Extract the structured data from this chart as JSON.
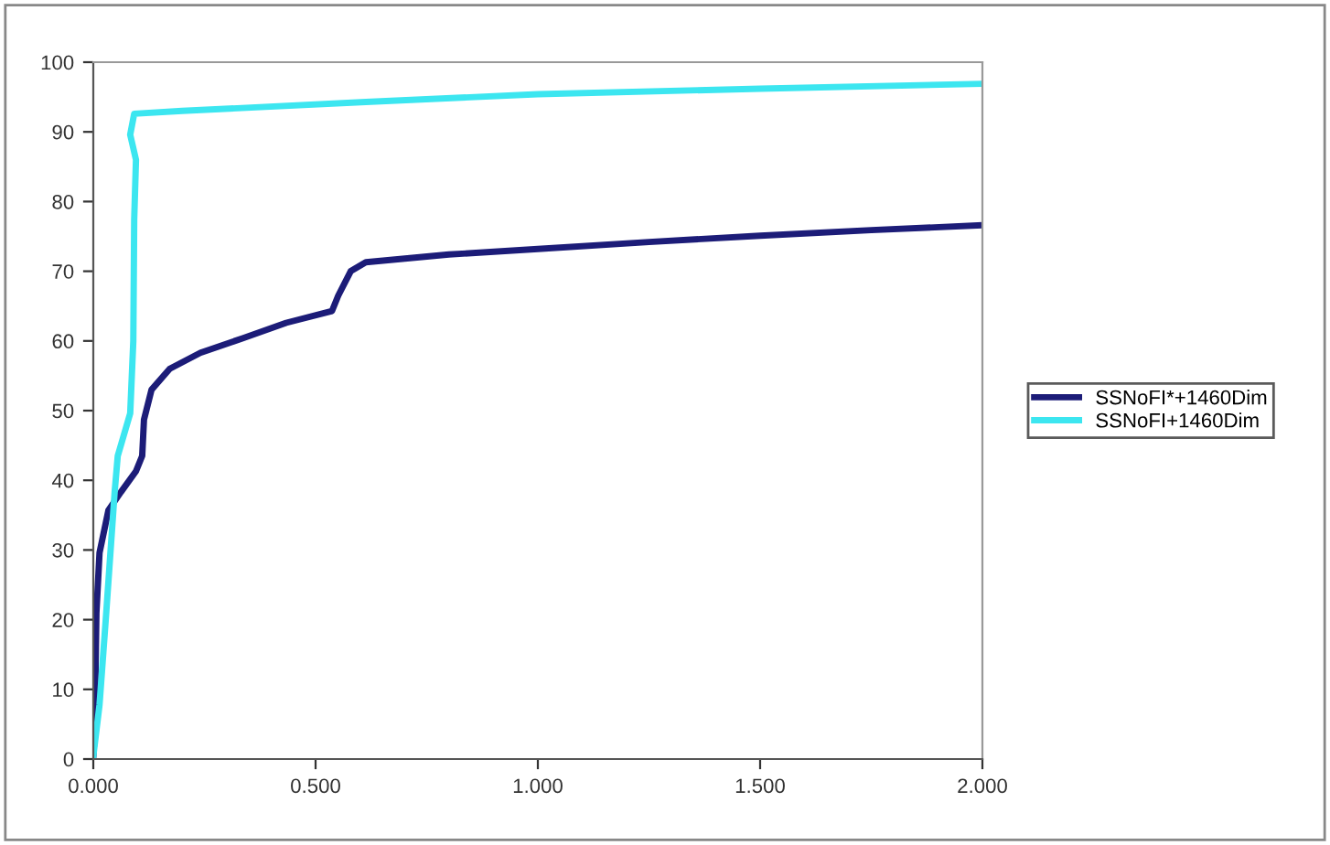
{
  "chart_data": {
    "type": "line",
    "xlim": [
      0,
      2
    ],
    "xticks": [
      {
        "value": 0,
        "label": "0.000"
      },
      {
        "value": 0.5,
        "label": "0.500"
      },
      {
        "value": 1,
        "label": "1.000"
      },
      {
        "value": 1.5,
        "label": "1.500"
      },
      {
        "value": 2,
        "label": "2.000"
      }
    ],
    "ylim": [
      0,
      100
    ],
    "yticks": [
      0,
      10,
      20,
      30,
      40,
      50,
      60,
      70,
      80,
      90,
      100
    ],
    "grid": false,
    "legend": "right",
    "marker": "none",
    "line_style": "solid",
    "series": [
      {
        "name": "SSNoFI*+1460Dim",
        "color": "#1c1c78",
        "x": [
          0.0,
          0.003,
          0.007,
          0.014,
          0.034,
          0.062,
          0.096,
          0.11,
          0.114,
          0.131,
          0.172,
          0.241,
          0.337,
          0.434,
          0.537,
          0.551,
          0.579,
          0.613,
          0.8,
          1.0,
          1.25,
          1.5,
          1.75,
          2.0
        ],
        "values": [
          0.5,
          3.5,
          21,
          29.6,
          35.7,
          38.3,
          41.3,
          43.5,
          48.7,
          53,
          56,
          58.3,
          60.4,
          62.6,
          64.3,
          66.5,
          70,
          71.3,
          72.4,
          73.2,
          74.2,
          75.1,
          75.9,
          76.6
        ]
      },
      {
        "name": "SSNoFI+1460Dim",
        "color": "#3ce6f0",
        "x": [
          0.0,
          0.014,
          0.028,
          0.048,
          0.055,
          0.083,
          0.09,
          0.092,
          0.096,
          0.083,
          0.092,
          0.2,
          0.613,
          1.0,
          1.5,
          2.0
        ],
        "values": [
          0.4,
          7.8,
          20,
          38.3,
          43.5,
          49.6,
          60,
          77.4,
          86,
          89.6,
          92.6,
          93,
          94.3,
          95.4,
          96.2,
          96.9
        ]
      }
    ]
  }
}
